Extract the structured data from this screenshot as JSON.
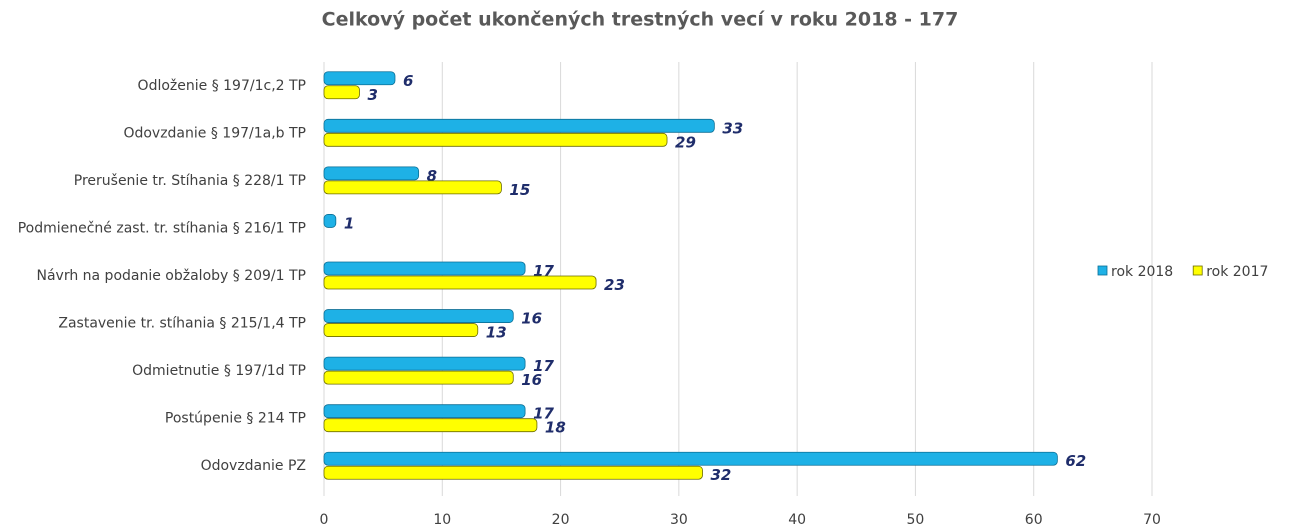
{
  "chart_data": {
    "type": "barh",
    "title": "Celkový počet ukončených trestných vecí v roku 2018 - 177",
    "categories": [
      "Odloženie § 197/1c,2 TP",
      "Odovzdanie § 197/1a,b TP",
      "Prerušenie tr. Stíhania § 228/1 TP",
      "Podmienečné zast. tr. stíhania § 216/1 TP",
      "Návrh na podanie obžaloby § 209/1 TP",
      "Zastavenie tr. stíhania § 215/1,4 TP",
      "Odmietnutie § 197/1d TP",
      "Postúpenie § 214 TP",
      "Odovzdanie PZ"
    ],
    "series": [
      {
        "name": "rok 2018",
        "color": "#1eb1e6",
        "values": [
          6,
          33,
          8,
          1,
          17,
          16,
          17,
          17,
          62
        ]
      },
      {
        "name": "rok 2017",
        "color": "#ffff00",
        "values": [
          3,
          29,
          15,
          null,
          23,
          13,
          16,
          18,
          32
        ]
      }
    ],
    "xlim": [
      0,
      70
    ],
    "xticks": [
      0,
      10,
      20,
      30,
      40,
      50,
      60,
      70
    ],
    "grid": true,
    "legend": "right"
  }
}
